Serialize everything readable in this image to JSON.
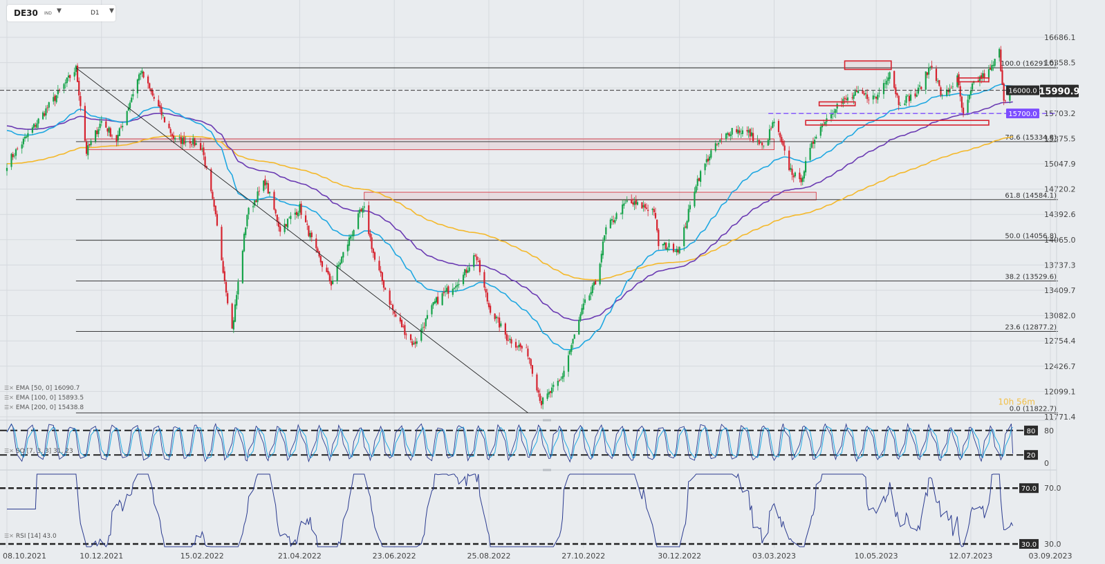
{
  "toolbar": {
    "symbol": "DE30",
    "symbol_type": "IND",
    "timeframe": "D1"
  },
  "colors": {
    "ema50": "#1ea7e1",
    "ema100": "#6a3ab2",
    "ema200": "#f4b82a",
    "bull": "#16a34a",
    "bear": "#d6222e",
    "level_purple": "#7c4dff"
  },
  "chart_data": [
    {
      "type": "candlestick",
      "instrument": "DE30",
      "timeframe": "D1",
      "x_tick_labels": [
        "08.10.2021",
        "10.12.2021",
        "15.02.2022",
        "21.04.2022",
        "23.06.2022",
        "25.08.2022",
        "27.10.2022",
        "30.12.2022",
        "03.03.2023",
        "10.05.2023",
        "12.07.2023",
        "03.09.2023"
      ],
      "y_tick_labels": [
        "16686.1",
        "16358.5",
        "16030.8",
        "15703.2",
        "15375.5",
        "15047.9",
        "14720.2",
        "14392.6",
        "14065.0",
        "13737.3",
        "13409.7",
        "13082.0",
        "12754.4",
        "12426.7",
        "12099.1",
        "11771.4"
      ],
      "ylim": [
        11771.4,
        16686.1
      ],
      "close_anchors": [
        [
          "08.10.2021",
          15050
        ],
        [
          "23.11.2021",
          16280
        ],
        [
          "30.11.2021",
          15200
        ],
        [
          "10.12.2021",
          15600
        ],
        [
          "20.12.2021",
          15350
        ],
        [
          "05.01.2022",
          16250
        ],
        [
          "20.01.2022",
          15650
        ],
        [
          "28.01.2022",
          15350
        ],
        [
          "07.02.2022",
          15350
        ],
        [
          "15.02.2022",
          15250
        ],
        [
          "24.02.2022",
          14350
        ],
        [
          "07.03.2022",
          12900
        ],
        [
          "17.03.2022",
          14400
        ],
        [
          "29.03.2022",
          14820
        ],
        [
          "08.04.2022",
          14200
        ],
        [
          "21.04.2022",
          14480
        ],
        [
          "02.05.2022",
          13900
        ],
        [
          "12.05.2022",
          13500
        ],
        [
          "31.05.2022",
          14400
        ],
        [
          "03.06.2022",
          14450
        ],
        [
          "10.06.2022",
          13800
        ],
        [
          "23.06.2022",
          13100
        ],
        [
          "06.07.2022",
          12700
        ],
        [
          "20.07.2022",
          13250
        ],
        [
          "08.08.2022",
          13600
        ],
        [
          "16.08.2022",
          13880
        ],
        [
          "25.08.2022",
          13200
        ],
        [
          "06.09.2022",
          12800
        ],
        [
          "20.09.2022",
          12600
        ],
        [
          "29.09.2022",
          11950
        ],
        [
          "12.10.2022",
          12250
        ],
        [
          "27.10.2022",
          13200
        ],
        [
          "04.11.2022",
          13500
        ],
        [
          "11.11.2022",
          14200
        ],
        [
          "25.11.2022",
          14550
        ],
        [
          "13.12.2022",
          14450
        ],
        [
          "16.12.2022",
          14000
        ],
        [
          "30.12.2022",
          13950
        ],
        [
          "10.01.2023",
          14800
        ],
        [
          "20.01.2023",
          15200
        ],
        [
          "03.02.2023",
          15500
        ],
        [
          "14.02.2023",
          15450
        ],
        [
          "24.02.2023",
          15250
        ],
        [
          "03.03.2023",
          15600
        ],
        [
          "13.03.2023",
          15000
        ],
        [
          "20.03.2023",
          14800
        ],
        [
          "31.03.2023",
          15450
        ],
        [
          "13.04.2023",
          15800
        ],
        [
          "27.04.2023",
          15950
        ],
        [
          "10.05.2023",
          15900
        ],
        [
          "19.05.2023",
          16250
        ],
        [
          "25.05.2023",
          15850
        ],
        [
          "06.06.2023",
          15950
        ],
        [
          "16.06.2023",
          16350
        ],
        [
          "23.06.2023",
          15900
        ],
        [
          "03.07.2023",
          16150
        ],
        [
          "07.07.2023",
          15650
        ],
        [
          "14.07.2023",
          16100
        ],
        [
          "25.07.2023",
          16250
        ],
        [
          "31.07.2023",
          16500
        ],
        [
          "03.08.2023",
          15900
        ],
        [
          "09.08.2023",
          16000
        ]
      ],
      "indicators": [
        {
          "name": "EMA [50, 0]",
          "last_value": 16090.7
        },
        {
          "name": "EMA [100, 0]",
          "last_value": 15893.5
        },
        {
          "name": "EMA [200, 0]",
          "last_value": 15438.8
        }
      ],
      "fibonacci_levels": [
        {
          "label": "100.0 (16291.0)",
          "value": 16291.0
        },
        {
          "label": "78.6 (15334.8)",
          "value": 15334.8
        },
        {
          "label": "61.8 (14584.1)",
          "value": 14584.1
        },
        {
          "label": "50.0 (14056.8)",
          "value": 14056.8
        },
        {
          "label": "38.2 (13529.6)",
          "value": 13529.6
        },
        {
          "label": "23.6 (12877.2)",
          "value": 12877.2
        },
        {
          "label": "0.0 (11822.7)",
          "value": 11822.7
        }
      ],
      "level_tags": [
        {
          "text": "16000.0",
          "value": 16000.0,
          "style": "dark"
        },
        {
          "text": "15700.0",
          "value": 15700.0,
          "style": "purple"
        }
      ],
      "last_price": {
        "text": "15990.9",
        "value": 15990.9
      },
      "candle_countdown": "10h 56m",
      "zones": [
        {
          "from": 15230,
          "to": 15370,
          "start": "30.11.2021",
          "end": "03.03.2023"
        },
        {
          "from": 14580,
          "to": 14680,
          "start": "03.06.2022",
          "end": "31.03.2023"
        }
      ],
      "trendline": {
        "from": [
          "23.11.2021",
          16291
        ],
        "to": [
          "20.09.2022",
          11822.7
        ]
      }
    },
    {
      "type": "line",
      "name": "SO [7, 3, 3] 31, 23",
      "label_text": "SO [7, 3, 3] 31, 23",
      "y_tick_labels": [
        "80",
        "0"
      ],
      "levels": [
        80,
        20
      ],
      "level_tags": [
        "80",
        "20"
      ],
      "ylim": [
        0,
        100
      ],
      "last_value": 23
    },
    {
      "type": "line",
      "name": "RSI [14] 43.0",
      "label_text": "RSI [14] 43.0",
      "y_tick_labels": [
        "70.0",
        "30.0"
      ],
      "levels": [
        70,
        30
      ],
      "level_tags": [
        "70.0",
        "30.0"
      ],
      "ylim": [
        27,
        82
      ],
      "last_value": 43.0
    }
  ]
}
